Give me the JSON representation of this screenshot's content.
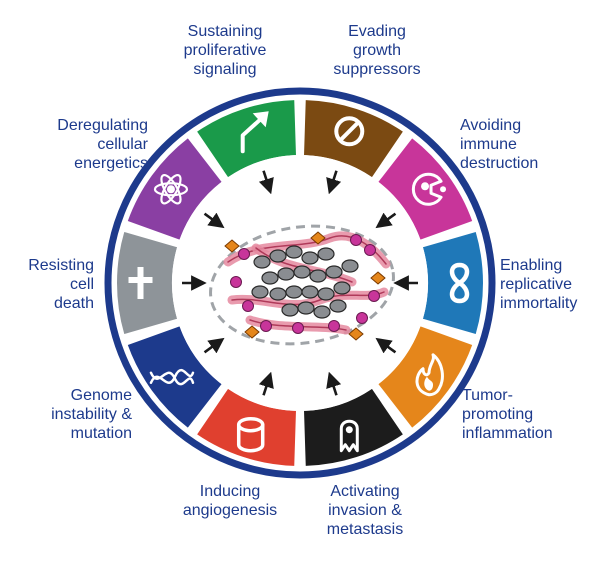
{
  "hallmarks": [
    {
      "id": "sustaining-proliferative-signaling",
      "label": "Sustaining\nproliferative\nsignaling",
      "color": "#1a9a4a",
      "icon": "arrow-up-right-icon"
    },
    {
      "id": "evading-growth-suppressors",
      "label": "Evading\ngrowth\nsuppressors",
      "color": "#7b4a12",
      "icon": "no-entry-icon"
    },
    {
      "id": "avoiding-immune-destruction",
      "label": "Avoiding\nimmune\ndestruction",
      "color": "#c8359a",
      "icon": "immune-cell-icon"
    },
    {
      "id": "enabling-replicative-immortality",
      "label": "Enabling\nreplicative\nimmortality",
      "color": "#1f78b8",
      "icon": "infinity-icon"
    },
    {
      "id": "tumor-promoting-inflammation",
      "label": "Tumor-\npromoting\ninflammation",
      "color": "#e5861b",
      "icon": "flame-icon"
    },
    {
      "id": "activating-invasion-metastasis",
      "label": "Activating\ninvasion &\nmetastasis",
      "color": "#1c1c1c",
      "icon": "invading-cell-icon"
    },
    {
      "id": "inducing-angiogenesis",
      "label": "Inducing\nangiogenesis",
      "color": "#e0402f",
      "icon": "blood-vessel-icon"
    },
    {
      "id": "genome-instability-mutation",
      "label": "Genome\ninstability &\nmutation",
      "color": "#1d3a8c",
      "icon": "dna-icon"
    },
    {
      "id": "resisting-cell-death",
      "label": "Resisting\ncell\ndeath",
      "color": "#8e9499",
      "icon": "cross-icon"
    },
    {
      "id": "deregulating-cellular-energetics",
      "label": "Deregulating\ncellular\nenergetics",
      "color": "#8a3fa3",
      "icon": "atom-icon"
    }
  ],
  "colors": {
    "ring_outline": "#1d3a8c",
    "label_text": "#1d3a8c",
    "tumor_cell": "#8a8d91",
    "stroma": "#e58aa0",
    "immune": "#c8359a",
    "fibroblast": "#e5861b"
  }
}
